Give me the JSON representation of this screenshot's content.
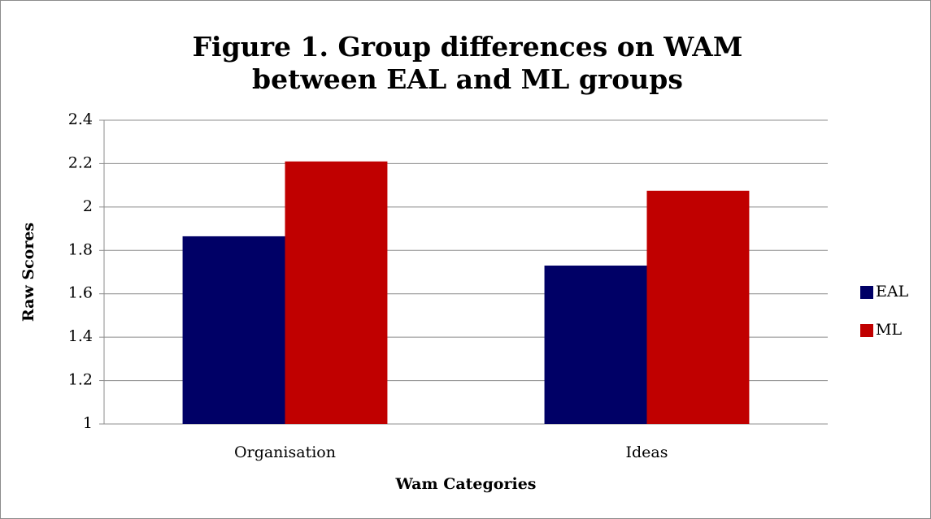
{
  "chart_data": {
    "type": "bar",
    "title": "Figure 1. Group differences on WAM between EAL and ML groups",
    "x_label": "Wam Categories",
    "y_label": "Raw Scores",
    "categories": [
      "Organisation",
      "Ideas"
    ],
    "series": [
      {
        "name": "EAL",
        "color": "#000066",
        "values": [
          1.865,
          1.73
        ]
      },
      {
        "name": "ML",
        "color": "#c00000",
        "values": [
          2.21,
          2.075
        ]
      }
    ],
    "ylim": [
      1,
      2.4
    ],
    "yticks": [
      1,
      1.2,
      1.4,
      1.6,
      1.8,
      2,
      2.2,
      2.4
    ],
    "grid": true,
    "legend": "right"
  }
}
